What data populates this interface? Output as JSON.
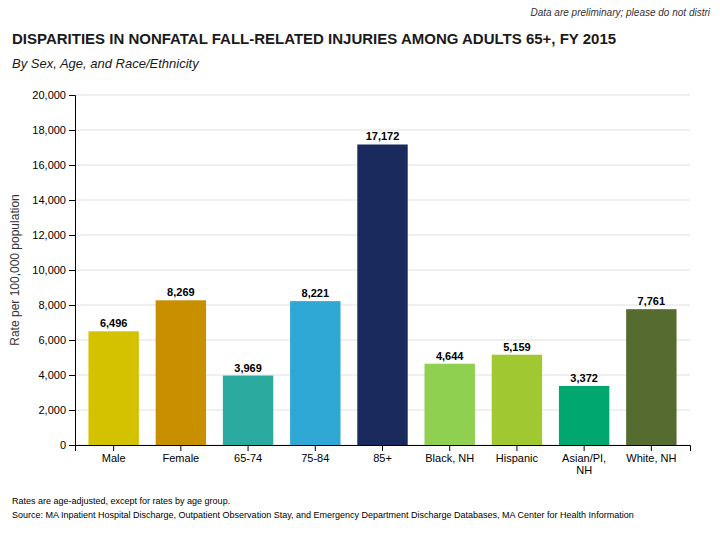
{
  "chart_data": {
    "type": "bar",
    "title": "DISPARITIES IN NONFATAL FALL-RELATED INJURIES AMONG ADULTS 65+, FY 2015",
    "subtitle": "By Sex, Age, and Race/Ethnicity",
    "annotations": [
      "Data are preliminary; please do not distri",
      "Rates are age-adjusted, except for rates by age group.",
      "Source: MA Inpatient Hospital Discharge, Outpatient Observation Stay, and Emergency Department Discharge Databases, MA Center for Health Information"
    ],
    "categories": [
      "Male",
      "Female",
      "65-74",
      "75-84",
      "85+",
      "Black, NH",
      "Hispanic",
      "Asian/PI,\nNH",
      "White, NH"
    ],
    "values": [
      6496,
      8269,
      3969,
      8221,
      17172,
      4644,
      5159,
      3372,
      7761
    ],
    "value_labels": [
      "6,496",
      "8,269",
      "3,969",
      "8,221",
      "17,172",
      "4,644",
      "5,159",
      "3,372",
      "7,761"
    ],
    "colors": [
      "#d4c200",
      "#c89000",
      "#2baaa0",
      "#2fa8d5",
      "#1b2a5c",
      "#90d050",
      "#a0c830",
      "#00a870",
      "#556b2f"
    ],
    "y_label": "Rate per 100,000 population",
    "ylim": [
      0,
      20000
    ],
    "yticks": [
      0,
      {
        "value": 2000,
        "label": "2,000"
      },
      {
        "value": 4000,
        "label": "4,000"
      },
      {
        "value": 6000,
        "label": "6,000"
      },
      {
        "value": 8000,
        "label": "8,000"
      },
      {
        "value": 10000,
        "label": "10,000"
      },
      {
        "value": 12000,
        "label": "12,000"
      },
      {
        "value": 14000,
        "label": "14,000"
      },
      {
        "value": 16000,
        "label": "16,000"
      },
      {
        "value": 18000,
        "label": "18,000"
      },
      {
        "value": 20000,
        "label": "20,000"
      }
    ],
    "grid": true,
    "data_labels": true
  }
}
